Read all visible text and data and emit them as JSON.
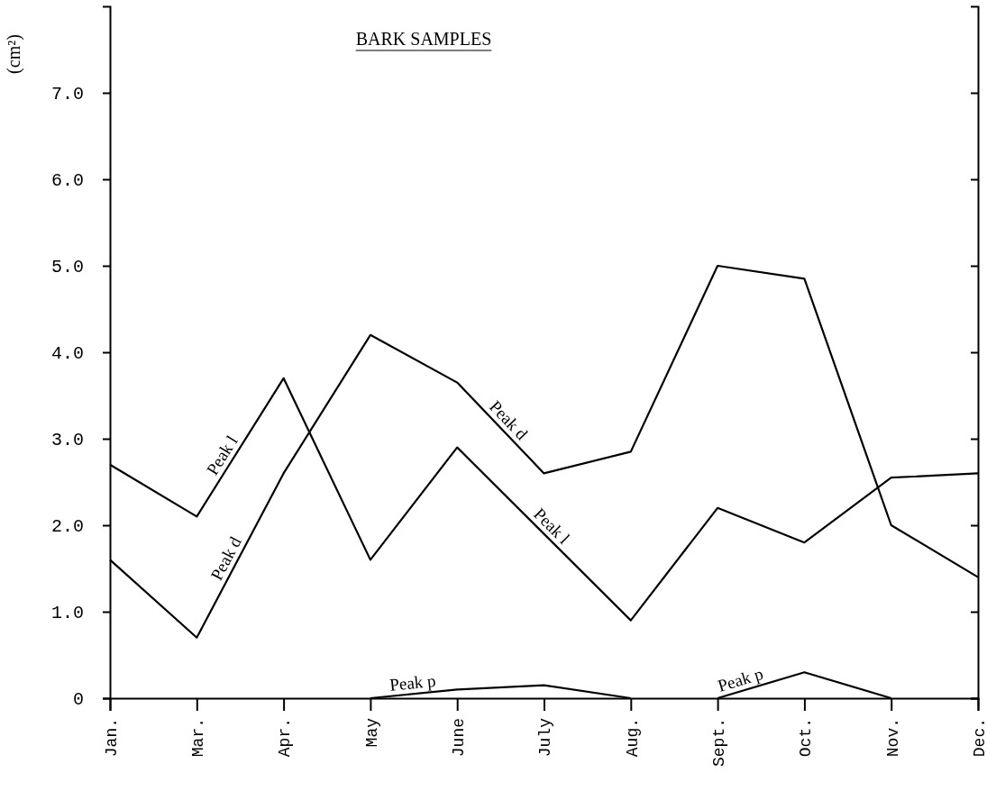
{
  "chart_data": {
    "type": "line",
    "title": "BARK SAMPLES",
    "ylabel": "(cm²)",
    "categories": [
      "Jan.",
      "Mar.",
      "Apr.",
      "May",
      "June",
      "July",
      "Aug.",
      "Sept.",
      "Oct.",
      "Nov.",
      "Dec."
    ],
    "ylim": [
      0,
      8
    ],
    "yticks": [
      0,
      {
        "value": 1,
        "label": "1.0"
      },
      {
        "value": 2,
        "label": "2.0"
      },
      {
        "value": 3,
        "label": "3.0"
      },
      {
        "value": 4,
        "label": "4.0"
      },
      {
        "value": 5,
        "label": "5.0"
      },
      {
        "value": 6,
        "label": "6.0"
      },
      {
        "value": 7,
        "label": "7.0"
      }
    ],
    "grid": false,
    "legend": false,
    "marker": "none",
    "line_style": "solid",
    "series": [
      {
        "name": "Peak l",
        "color": "#000000",
        "values": [
          2.7,
          2.1,
          3.7,
          1.6,
          2.9,
          1.9,
          0.9,
          2.2,
          1.8,
          2.55,
          2.6
        ]
      },
      {
        "name": "Peak d",
        "color": "#000000",
        "values": [
          1.6,
          0.7,
          2.6,
          4.2,
          3.65,
          2.6,
          2.85,
          5.0,
          4.85,
          2.0,
          1.4
        ]
      },
      {
        "name": "Peak p",
        "color": "#000000",
        "values": [
          null,
          null,
          null,
          0,
          0.1,
          0.15,
          0,
          null,
          null,
          null,
          null
        ]
      },
      {
        "name": "Peak p",
        "color": "#000000",
        "values": [
          null,
          null,
          null,
          null,
          null,
          null,
          null,
          0,
          0.3,
          0,
          null
        ]
      }
    ]
  }
}
